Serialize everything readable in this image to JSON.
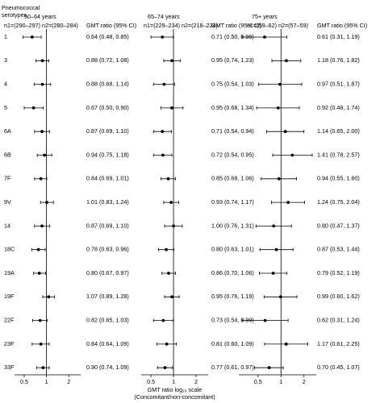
{
  "chart_data": [
    {
      "type": "forest",
      "ylabel": "Pneumococcal serotypes",
      "title": "50–64 years",
      "subtitle": "n1=(290–297) n2=(280–284)",
      "column_header": "GMT ratio (95% CI)",
      "categories": [
        "1",
        "3",
        "4",
        "5",
        "6A",
        "6B",
        "7F",
        "9V",
        "14",
        "18C",
        "19A",
        "19F",
        "22F",
        "23F",
        "33F"
      ],
      "values": [
        0.64,
        0.88,
        0.88,
        0.67,
        0.87,
        0.94,
        0.84,
        1.01,
        0.87,
        0.78,
        0.8,
        1.07,
        0.82,
        0.84,
        0.9
      ],
      "lower": [
        0.48,
        0.72,
        0.68,
        0.5,
        0.69,
        0.75,
        0.69,
        0.83,
        0.69,
        0.63,
        0.67,
        0.89,
        0.65,
        0.64,
        0.74
      ],
      "upper": [
        0.85,
        1.08,
        1.14,
        0.9,
        1.1,
        1.18,
        1.01,
        1.24,
        1.1,
        0.96,
        0.97,
        1.28,
        1.03,
        1.09,
        1.09
      ],
      "value_labels": [
        "0.64 (0.48, 0.85)",
        "0.88 (0.72, 1.08)",
        "0.88 (0.68, 1.14)",
        "0.67 (0.50, 0.90)",
        "0.87 (0.69, 1.10)",
        "0.94 (0.75, 1.18)",
        "0.84 (0.69, 1.01)",
        "1.01 (0.83, 1.24)",
        "0.87 (0.69, 1.10)",
        "0.78 (0.63, 0.96)",
        "0.80 (0.67, 0.97)",
        "1.07 (0.89, 1.28)",
        "0.82 (0.65, 1.03)",
        "0.84 (0.64, 1.09)",
        "0.90 (0.74, 1.09)"
      ],
      "xscale": "log",
      "xlim": [
        0.37,
        2.9
      ],
      "xticks": [
        0.5,
        1,
        2
      ],
      "reference": 1,
      "color": "#000000"
    },
    {
      "type": "forest",
      "title": "65–74 years",
      "subtitle": "n1=(229–234) n2=(218–224)",
      "column_header": "GMT ratio (95% CI)",
      "xlabel": "GMT ratio log₁₀ scale",
      "xsublabel": "(Concomitant/non-concomitant)",
      "values": [
        0.71,
        0.95,
        0.75,
        0.95,
        0.71,
        0.72,
        0.85,
        0.93,
        1.0,
        0.8,
        0.86,
        0.95,
        0.73,
        0.81,
        0.77
      ],
      "lower": [
        0.5,
        0.74,
        0.54,
        0.68,
        0.54,
        0.54,
        0.68,
        0.74,
        0.76,
        0.63,
        0.7,
        0.76,
        0.54,
        0.6,
        0.61
      ],
      "upper": [
        0.99,
        1.23,
        1.03,
        1.34,
        0.94,
        0.95,
        1.06,
        1.17,
        1.31,
        1.01,
        1.06,
        1.19,
        0.99,
        1.09,
        0.97
      ],
      "value_labels": [
        "0.71 (0.50, 0.99)",
        "0.95 (0.74, 1.23)",
        "0.75 (0.54, 1.03)",
        "0.95 (0.68, 1.34)",
        "0.71 (0.54, 0.94)",
        "0.72 (0.54, 0.95)",
        "0.85 (0.68, 1.06)",
        "0.93 (0.74, 1.17)",
        "1.00 (0.76, 1.31)",
        "0.80 (0.63, 1.01)",
        "0.86 (0.70, 1.06)",
        "0.95 (0.76, 1.19)",
        "0.73 (0.54, 0.99)",
        "0.81 (0.60, 1.09)",
        "0.77 (0.61, 0.97)"
      ],
      "xscale": "log",
      "xlim": [
        0.37,
        2.9
      ],
      "xticks": [
        0.5,
        1,
        2
      ],
      "reference": 1,
      "color": "#000000"
    },
    {
      "type": "forest",
      "title": "75+ years",
      "subtitle": "n1=(59–62) n2=(57–59)",
      "column_header": "GMT ratio (95% CI)",
      "values": [
        0.61,
        1.18,
        0.97,
        0.92,
        1.14,
        1.41,
        0.94,
        1.24,
        0.8,
        0.87,
        0.79,
        0.99,
        0.62,
        1.17,
        0.7
      ],
      "lower": [
        0.31,
        0.76,
        0.51,
        0.48,
        0.65,
        0.78,
        0.55,
        0.75,
        0.47,
        0.53,
        0.52,
        0.6,
        0.31,
        0.61,
        0.45
      ],
      "upper": [
        1.19,
        1.82,
        1.87,
        1.74,
        2.0,
        2.57,
        1.6,
        2.04,
        1.37,
        1.44,
        1.19,
        1.62,
        1.24,
        2.25,
        1.07
      ],
      "value_labels": [
        "0.61 (0.31, 1.19)",
        "1.18 (0.76, 1.82)",
        "0.97 (0.51, 1.87)",
        "0.92 (0.48, 1.74)",
        "1.14 (0.65, 2.00)",
        "1.41 (0.78, 2.57)",
        "0.94 (0.55, 1.60)",
        "1.24 (0.75, 2.04)",
        "0.80 (0.47, 1.37)",
        "0.87 (0.53, 1.44)",
        "0.79 (0.52, 1.19)",
        "0.99 (0.60, 1.62)",
        "0.62 (0.31, 1.24)",
        "1.17 (0.61, 2.25)",
        "0.70 (0.45, 1.07)"
      ],
      "xscale": "log",
      "xlim": [
        0.28,
        2.9
      ],
      "xticks": [
        0.5,
        1,
        2
      ],
      "reference": 1,
      "color": "#000000"
    }
  ]
}
